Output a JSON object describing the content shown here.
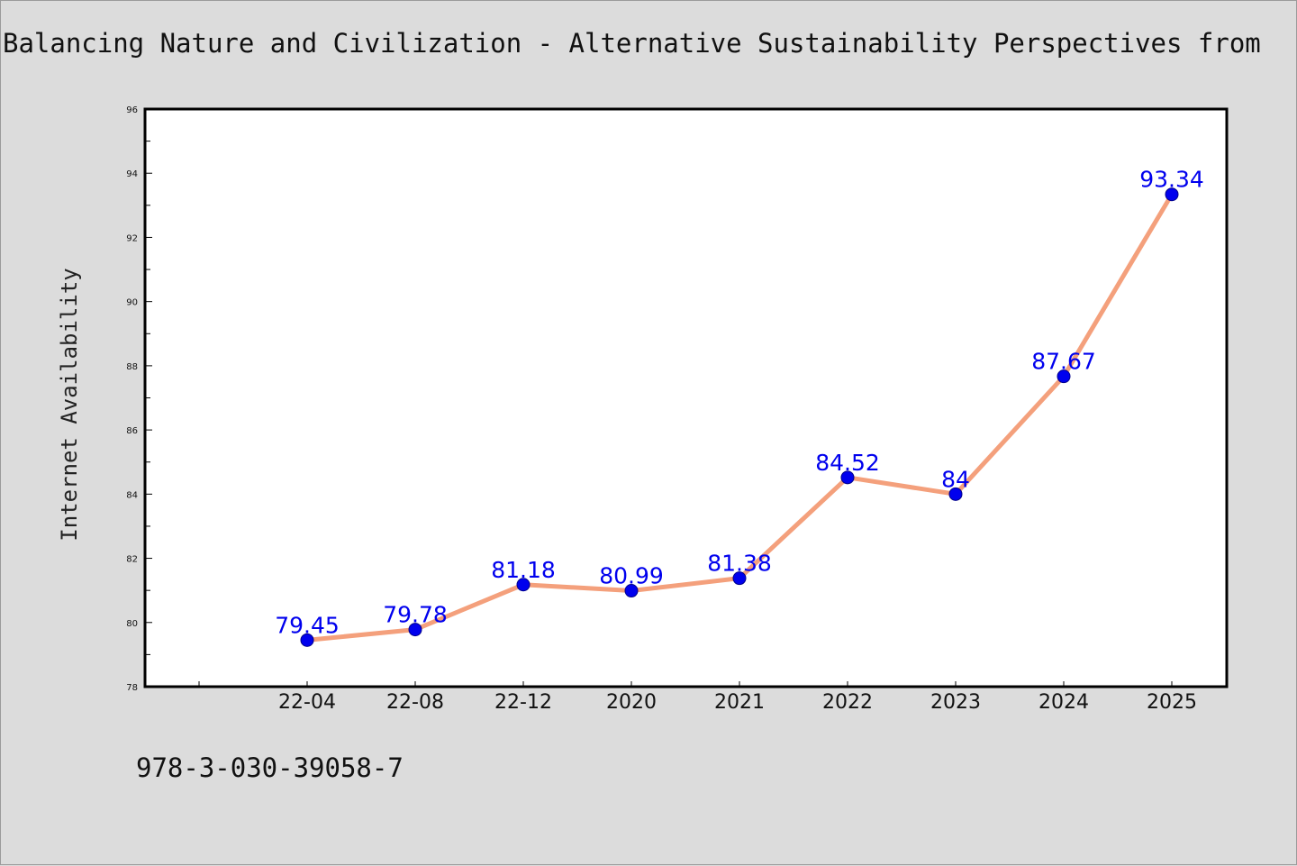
{
  "chart_data": {
    "type": "line",
    "title": "Balancing Nature and Civilization - Alternative Sustainability Perspectives from",
    "xlabel": "",
    "ylabel": "Internet Availability",
    "categories": [
      "22-04",
      "22-08",
      "22-12",
      "2020",
      "2021",
      "2022",
      "2023",
      "2024",
      "2025"
    ],
    "series": [
      {
        "values": [
          79.45,
          79.78,
          81.18,
          80.99,
          81.38,
          84.52,
          84,
          87.67,
          93.34
        ],
        "labels": [
          "79.45",
          "79.78",
          "81.18",
          "80.99",
          "81.38",
          "84.52",
          "84",
          "87.67",
          "93.34"
        ],
        "line_color": "#f4a07c",
        "marker_color": "#0000ee"
      }
    ],
    "ylim": [
      78,
      96
    ],
    "yticks": [
      "78",
      "80",
      "82",
      "84",
      "86",
      "88",
      "90",
      "92",
      "94",
      "96"
    ],
    "grid": false,
    "legend": "none"
  },
  "footer": {
    "isbn": "978-3-030-39058-7"
  }
}
